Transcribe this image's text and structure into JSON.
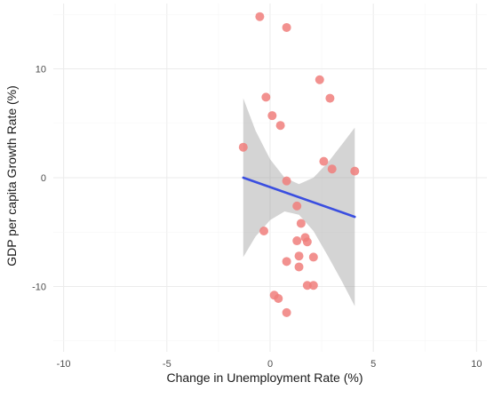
{
  "chart_data": {
    "type": "scatter",
    "title": "",
    "xlabel": "Change in Unemployment Rate (%)",
    "ylabel": "GDP per capita Growth Rate (%)",
    "xlim": [
      -10.5,
      10.5
    ],
    "ylim": [
      -16,
      16
    ],
    "x_ticks": [
      -10,
      -5,
      0,
      5,
      10
    ],
    "x_tick_labels": [
      "-10",
      "-5",
      "0",
      "5",
      "10"
    ],
    "y_ticks": [
      -10,
      0,
      10
    ],
    "y_tick_labels": [
      "-10",
      "0",
      "10"
    ],
    "grid": true,
    "points": [
      {
        "x": -0.5,
        "y": 14.8
      },
      {
        "x": 0.8,
        "y": 13.8
      },
      {
        "x": 2.4,
        "y": 9.0
      },
      {
        "x": -0.2,
        "y": 7.4
      },
      {
        "x": 2.9,
        "y": 7.3
      },
      {
        "x": 0.1,
        "y": 5.7
      },
      {
        "x": 0.5,
        "y": 4.8
      },
      {
        "x": -1.3,
        "y": 2.8
      },
      {
        "x": 2.6,
        "y": 1.5
      },
      {
        "x": 3.0,
        "y": 0.8
      },
      {
        "x": 4.1,
        "y": 0.6
      },
      {
        "x": 0.8,
        "y": -0.3
      },
      {
        "x": 1.3,
        "y": -2.6
      },
      {
        "x": 1.5,
        "y": -4.2
      },
      {
        "x": -0.3,
        "y": -4.9
      },
      {
        "x": 1.7,
        "y": -5.5
      },
      {
        "x": 1.3,
        "y": -5.8
      },
      {
        "x": 1.8,
        "y": -5.9
      },
      {
        "x": 1.4,
        "y": -7.2
      },
      {
        "x": 2.1,
        "y": -7.3
      },
      {
        "x": 0.8,
        "y": -7.7
      },
      {
        "x": 1.4,
        "y": -8.2
      },
      {
        "x": 1.8,
        "y": -9.9
      },
      {
        "x": 2.1,
        "y": -9.9
      },
      {
        "x": 0.2,
        "y": -10.8
      },
      {
        "x": 0.4,
        "y": -11.1
      },
      {
        "x": 0.8,
        "y": -12.4
      }
    ],
    "trend_line": {
      "x": [
        -1.3,
        4.1
      ],
      "y": [
        0.0,
        -3.6
      ]
    },
    "confidence_band": {
      "x": [
        -1.3,
        -0.7,
        0.0,
        0.7,
        1.4,
        2.1,
        2.8,
        3.5,
        4.1
      ],
      "upper": [
        7.3,
        4.3,
        1.7,
        0.0,
        -0.6,
        0.0,
        1.4,
        3.1,
        4.6
      ],
      "lower": [
        -7.3,
        -5.4,
        -3.9,
        -3.1,
        -3.4,
        -4.9,
        -7.2,
        -9.6,
        -11.8
      ]
    },
    "colors": {
      "points": "#f07e7b",
      "trend_line": "#3a4ee0",
      "confidence_band": "#999999",
      "grid": "#ebebeb"
    }
  }
}
